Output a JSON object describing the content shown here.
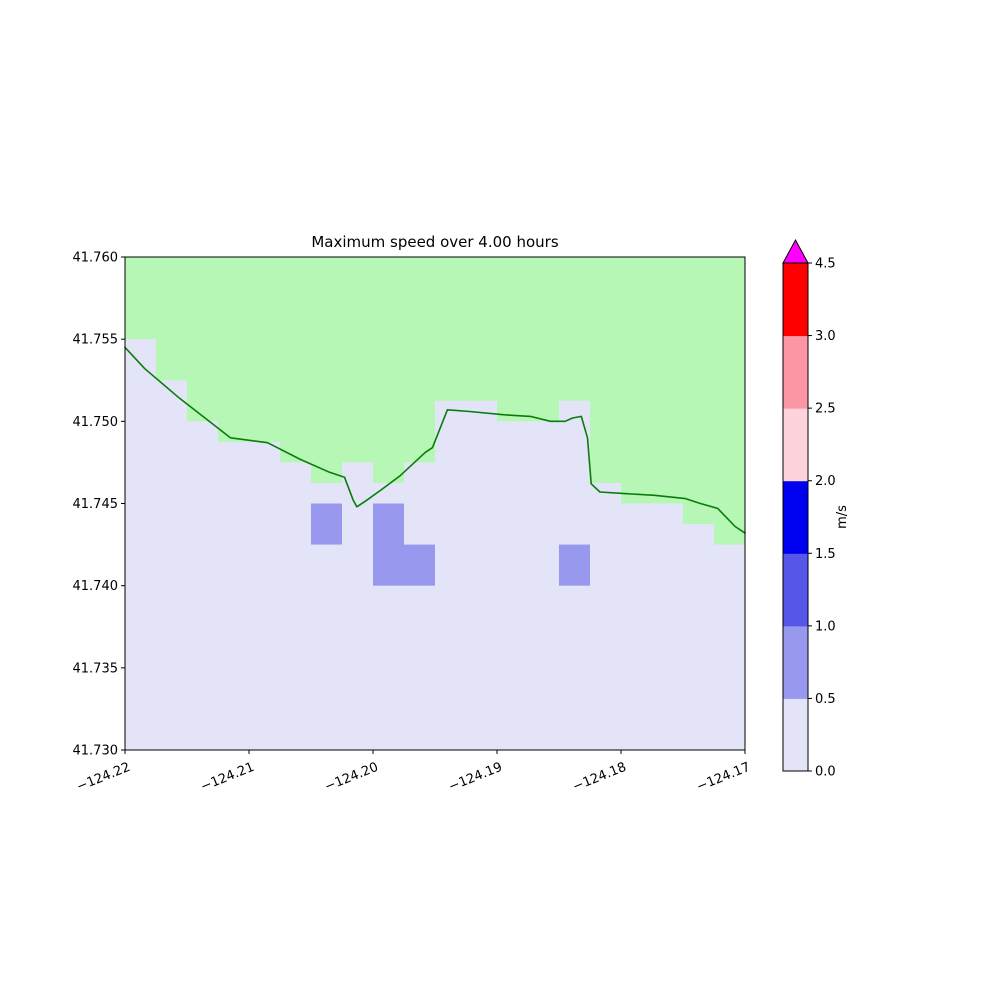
{
  "chart_data": {
    "type": "heatmap",
    "title": "Maximum speed over 4.00 hours",
    "xlabel": "",
    "ylabel": "",
    "xlim": [
      -124.22,
      -124.17
    ],
    "ylim": [
      41.73,
      41.76
    ],
    "xticks": [
      -124.22,
      -124.21,
      -124.2,
      -124.19,
      -124.18,
      -124.17
    ],
    "xtick_labels": [
      "−124.22",
      "−124.21",
      "−124.20",
      "−124.19",
      "−124.18",
      "−124.17"
    ],
    "xtick_rotation": -22,
    "yticks": [
      41.73,
      41.735,
      41.74,
      41.745,
      41.75,
      41.755,
      41.76
    ],
    "ytick_labels": [
      "41.730",
      "41.735",
      "41.740",
      "41.745",
      "41.750",
      "41.755",
      "41.760"
    ],
    "grid": false,
    "colorbar": {
      "label": "m/s",
      "position": "right",
      "boundaries": [
        0.0,
        0.5,
        1.0,
        1.5,
        2.0,
        2.5,
        3.0,
        4.5
      ],
      "tick_labels": [
        "0.0",
        "0.5",
        "1.0",
        "1.5",
        "2.0",
        "2.5",
        "3.0",
        "4.5"
      ],
      "segment_colors": [
        "#e4e4f8",
        "#9898ee",
        "#5656e8",
        "#0000f0",
        "#ffd3dc",
        "#fb96a4",
        "#ff0000"
      ],
      "over_color": "#ff00ff"
    },
    "map": {
      "water_color": "#e4e4f8",
      "water_speed_range": "0.0–0.5",
      "land_color": "#b6f7b6",
      "coastline_color": "#087d08",
      "cell_color": "#9898ee",
      "cell_speed_range": "0.5–1.0",
      "land_boundary_step_lon": 0.0025,
      "land_boundary": [
        [
          -124.22,
          41.755
        ],
        [
          -124.2175,
          41.7525
        ],
        [
          -124.215,
          41.75
        ],
        [
          -124.2125,
          41.74875
        ],
        [
          -124.21,
          41.74875
        ],
        [
          -124.2075,
          41.7475
        ],
        [
          -124.205,
          41.74625
        ],
        [
          -124.2025,
          41.7475
        ],
        [
          -124.2,
          41.74625
        ],
        [
          -124.1975,
          41.7475
        ],
        [
          -124.195,
          41.75125
        ],
        [
          -124.1925,
          41.75125
        ],
        [
          -124.19,
          41.75
        ],
        [
          -124.1875,
          41.75
        ],
        [
          -124.185,
          41.75125
        ],
        [
          -124.1825,
          41.74625
        ],
        [
          -124.18,
          41.745
        ],
        [
          -124.1775,
          41.745
        ],
        [
          -124.175,
          41.74375
        ],
        [
          -124.1725,
          41.7425
        ]
      ],
      "speed_cells": [
        {
          "lon0": -124.205,
          "lat0": 41.7425,
          "lon1": -124.2025,
          "lat1": 41.745,
          "value": "0.5–1.0"
        },
        {
          "lon0": -124.2,
          "lat0": 41.74,
          "lon1": -124.1975,
          "lat1": 41.745,
          "value": "0.5–1.0"
        },
        {
          "lon0": -124.1975,
          "lat0": 41.74,
          "lon1": -124.195,
          "lat1": 41.7425,
          "value": "0.5–1.0"
        },
        {
          "lon0": -124.185,
          "lat0": 41.74,
          "lon1": -124.1825,
          "lat1": 41.7425,
          "value": "0.5–1.0"
        }
      ],
      "coastline": [
        [
          -124.22,
          41.7545
        ],
        [
          -124.2184,
          41.7532
        ],
        [
          -124.2156,
          41.7514
        ],
        [
          -124.2115,
          41.749
        ],
        [
          -124.2085,
          41.7487
        ],
        [
          -124.2059,
          41.7477
        ],
        [
          -124.2035,
          41.7469
        ],
        [
          -124.2023,
          41.7466
        ],
        [
          -124.2016,
          41.7452
        ],
        [
          -124.2013,
          41.7448
        ],
        [
          -124.2005,
          41.7452
        ],
        [
          -124.1994,
          41.7458
        ],
        [
          -124.1978,
          41.7467
        ],
        [
          -124.1958,
          41.7481
        ],
        [
          -124.1952,
          41.7484
        ],
        [
          -124.194,
          41.7507
        ],
        [
          -124.1922,
          41.7506
        ],
        [
          -124.1894,
          41.7504
        ],
        [
          -124.1873,
          41.7503
        ],
        [
          -124.1857,
          41.75
        ],
        [
          -124.1845,
          41.75
        ],
        [
          -124.1839,
          41.7502
        ],
        [
          -124.1832,
          41.7503
        ],
        [
          -124.1827,
          41.749
        ],
        [
          -124.1824,
          41.7462
        ],
        [
          -124.1817,
          41.7457
        ],
        [
          -124.1797,
          41.7456
        ],
        [
          -124.1773,
          41.7455
        ],
        [
          -124.1748,
          41.7453
        ],
        [
          -124.1736,
          41.745
        ],
        [
          -124.1722,
          41.7447
        ],
        [
          -124.1708,
          41.7436
        ],
        [
          -124.17,
          41.7432
        ]
      ]
    }
  }
}
